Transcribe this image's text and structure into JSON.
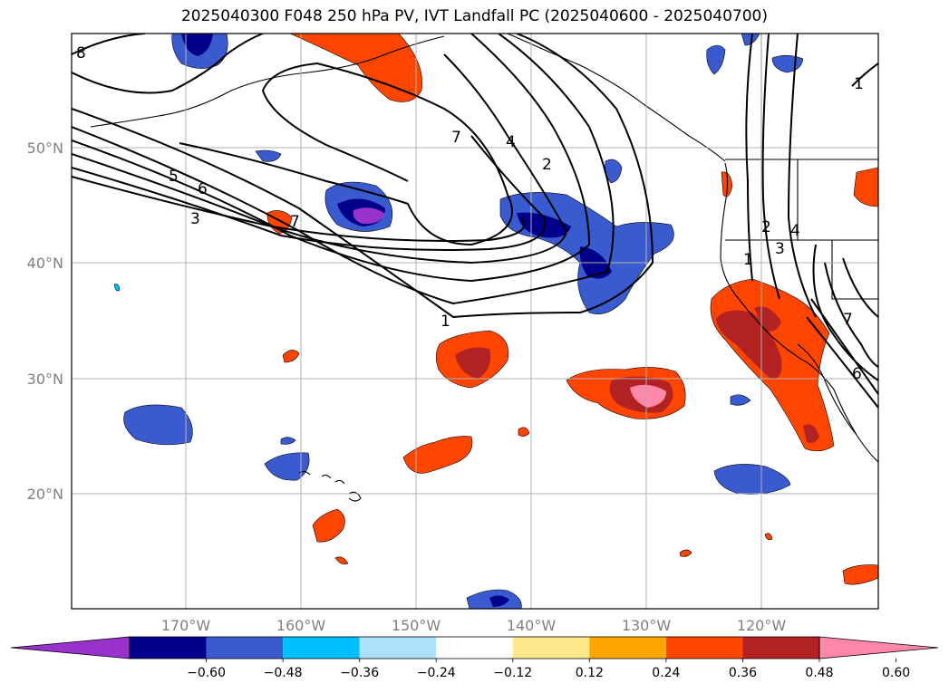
{
  "title": "2025040300 F048 250 hPa PV, IVT Landfall PC (2025040600 - 2025040700)",
  "lat_labels": [
    "50°N",
    "40°N",
    "30°N",
    "20°N"
  ],
  "lon_labels": [
    "170°W",
    "160°W",
    "150°W",
    "140°W",
    "130°W",
    "120°W"
  ],
  "colorbar": {
    "ticks": [
      "−0.60",
      "−0.48",
      "−0.36",
      "−0.24",
      "−0.12",
      "0.12",
      "0.24",
      "0.36",
      "0.48",
      "0.60"
    ],
    "colors": [
      "#9932CC",
      "#00008B",
      "#3A5BD0",
      "#00BFFF",
      "#ADE0FA",
      "#FFFFFF",
      "#FFE98A",
      "#FFA500",
      "#FF4500",
      "#B22222",
      "#FF88AA"
    ]
  },
  "contour_labels": [
    "1",
    "2",
    "3",
    "4",
    "5",
    "6",
    "7",
    "8"
  ]
}
